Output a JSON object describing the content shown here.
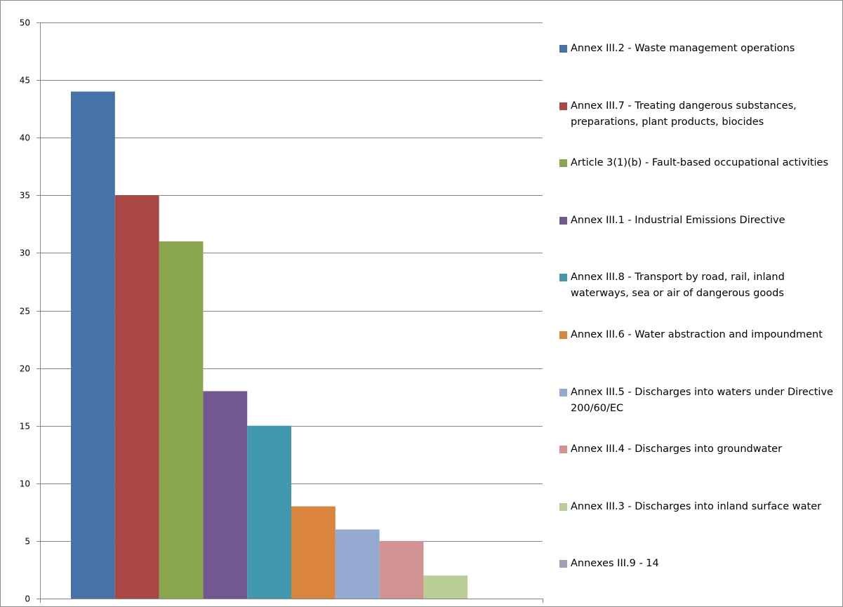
{
  "chart_data": {
    "type": "bar",
    "title": "",
    "xlabel": "",
    "ylabel": "",
    "ylim": [
      0,
      50
    ],
    "yticks": [
      0,
      5,
      10,
      15,
      20,
      25,
      30,
      35,
      40,
      45,
      50
    ],
    "grid": "horizontal",
    "legend_placement": "right",
    "series": [
      {
        "name": "Annex III.2 - Waste management operations",
        "value": 44,
        "color": "#4572A7"
      },
      {
        "name": "Annex III.7 - Treating dangerous substances, preparations, plant products, biocides",
        "value": 35,
        "color": "#AA4643"
      },
      {
        "name": "Article 3(1)(b) - Fault-based occupational activities",
        "value": 31,
        "color": "#89A54E"
      },
      {
        "name": "Annex III.1 - Industrial Emissions Directive",
        "value": 18,
        "color": "#71588F"
      },
      {
        "name": "Annex III.8 - Transport by road, rail, inland waterways, sea or air of dangerous goods",
        "value": 15,
        "color": "#4198AF"
      },
      {
        "name": "Annex III.6 - Water abstraction and impoundment",
        "value": 8,
        "color": "#DB843D"
      },
      {
        "name": "Annex III.5 - Discharges into waters under Directive 200/60/EC",
        "value": 6,
        "color": "#93A9CF"
      },
      {
        "name": "Annex III.4 - Discharges into groundwater",
        "value": 5,
        "color": "#D19392"
      },
      {
        "name": "Annex III.3 - Discharges into inland surface water",
        "value": 2,
        "color": "#B9CD96"
      },
      {
        "name": "Annexes III.9 - 14",
        "value": 0,
        "color": "#A99BBD"
      }
    ]
  }
}
